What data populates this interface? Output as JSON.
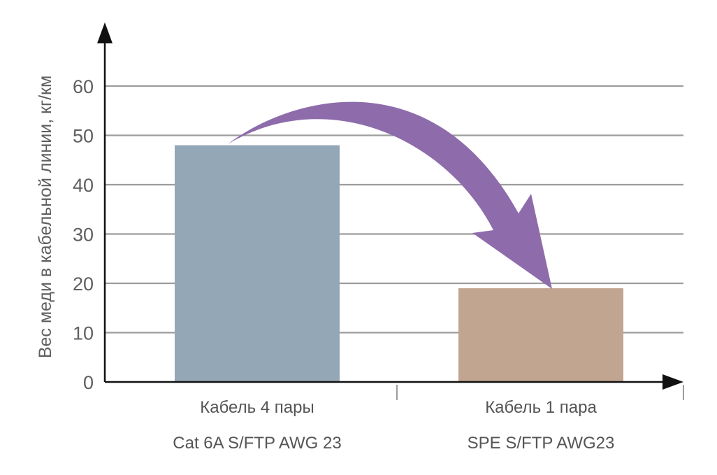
{
  "chart_data": {
    "type": "bar",
    "title": "",
    "xlabel": "",
    "ylabel": "Вес меди в кабельной линии, кг/км",
    "ylim": [
      0,
      60
    ],
    "yticks": [
      0,
      10,
      20,
      30,
      40,
      50,
      60
    ],
    "grid": true,
    "categories": [
      {
        "line1": "Кабель 4 пары",
        "line2": "Cat 6A S/FTP AWG 23"
      },
      {
        "line1": "Кабель 1 пара",
        "line2": "SPE S/FTP AWG23"
      }
    ],
    "values": [
      48,
      19
    ],
    "colors": [
      "#94a7b6",
      "#c1a590"
    ],
    "annotation": {
      "type": "curved-arrow",
      "from": "bar-1",
      "to": "bar-2",
      "color": "#8e6cab"
    }
  }
}
